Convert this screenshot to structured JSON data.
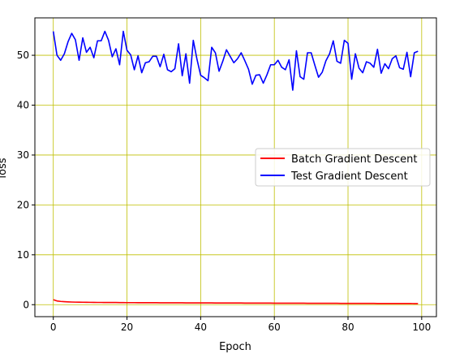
{
  "chart_data": {
    "type": "line",
    "title": "",
    "xlabel": "Epoch",
    "ylabel": "loss",
    "xlim": [
      -5,
      104
    ],
    "ylim": [
      -2.4,
      57.5
    ],
    "xticks": [
      0,
      20,
      40,
      60,
      80,
      100
    ],
    "yticks": [
      0,
      10,
      20,
      30,
      40,
      50
    ],
    "grid": true,
    "grid_color": "#bfbf00",
    "legend_position": "center-right",
    "series": [
      {
        "name": "Batch Gradient Descent",
        "color": "#ff0000",
        "x": [
          0,
          1,
          2,
          3,
          4,
          5,
          6,
          7,
          8,
          9,
          10,
          11,
          12,
          13,
          14,
          15,
          16,
          17,
          18,
          19,
          20,
          21,
          22,
          23,
          24,
          25,
          26,
          27,
          28,
          29,
          30,
          31,
          32,
          33,
          34,
          35,
          36,
          37,
          38,
          39,
          40,
          41,
          42,
          43,
          44,
          45,
          46,
          47,
          48,
          49,
          50,
          51,
          52,
          53,
          54,
          55,
          56,
          57,
          58,
          59,
          60,
          61,
          62,
          63,
          64,
          65,
          66,
          67,
          68,
          69,
          70,
          71,
          72,
          73,
          74,
          75,
          76,
          77,
          78,
          79,
          80,
          81,
          82,
          83,
          84,
          85,
          86,
          87,
          88,
          89,
          90,
          91,
          92,
          93,
          94,
          95,
          96,
          97,
          98,
          99
        ],
        "values": [
          1.0,
          0.75,
          0.65,
          0.6,
          0.56,
          0.53,
          0.51,
          0.5,
          0.49,
          0.48,
          0.47,
          0.46,
          0.45,
          0.45,
          0.44,
          0.44,
          0.43,
          0.43,
          0.42,
          0.42,
          0.41,
          0.41,
          0.41,
          0.4,
          0.4,
          0.4,
          0.39,
          0.39,
          0.39,
          0.38,
          0.38,
          0.38,
          0.38,
          0.37,
          0.37,
          0.37,
          0.36,
          0.36,
          0.36,
          0.36,
          0.35,
          0.35,
          0.35,
          0.35,
          0.34,
          0.34,
          0.34,
          0.34,
          0.33,
          0.33,
          0.33,
          0.33,
          0.32,
          0.32,
          0.32,
          0.32,
          0.31,
          0.31,
          0.31,
          0.31,
          0.3,
          0.3,
          0.3,
          0.3,
          0.29,
          0.29,
          0.29,
          0.29,
          0.29,
          0.28,
          0.28,
          0.28,
          0.28,
          0.27,
          0.27,
          0.27,
          0.27,
          0.27,
          0.26,
          0.26,
          0.26,
          0.26,
          0.26,
          0.25,
          0.25,
          0.25,
          0.25,
          0.25,
          0.24,
          0.24,
          0.24,
          0.24,
          0.24,
          0.23,
          0.23,
          0.23,
          0.23,
          0.23,
          0.22,
          0.22
        ]
      },
      {
        "name": "Test Gradient Descent",
        "color": "#0000ff",
        "x": [
          0,
          1,
          2,
          3,
          4,
          5,
          6,
          7,
          8,
          9,
          10,
          11,
          12,
          13,
          14,
          15,
          16,
          17,
          18,
          19,
          20,
          21,
          22,
          23,
          24,
          25,
          26,
          27,
          28,
          29,
          30,
          31,
          32,
          33,
          34,
          35,
          36,
          37,
          38,
          39,
          40,
          41,
          42,
          43,
          44,
          45,
          46,
          47,
          48,
          49,
          50,
          51,
          52,
          53,
          54,
          55,
          56,
          57,
          58,
          59,
          60,
          61,
          62,
          63,
          64,
          65,
          66,
          67,
          68,
          69,
          70,
          71,
          72,
          73,
          74,
          75,
          76,
          77,
          78,
          79,
          80,
          81,
          82,
          83,
          84,
          85,
          86,
          87,
          88,
          89,
          90,
          91,
          92,
          93,
          94,
          95,
          96,
          97,
          98,
          99
        ],
        "values": [
          54.8,
          50.0,
          49.0,
          50.3,
          52.7,
          54.4,
          53.1,
          49.0,
          53.5,
          50.6,
          51.6,
          49.5,
          52.9,
          52.9,
          54.8,
          53.0,
          49.7,
          51.3,
          48.1,
          54.8,
          51.0,
          50.1,
          47.1,
          49.9,
          46.5,
          48.5,
          48.7,
          49.8,
          49.8,
          47.7,
          50.2,
          47.1,
          46.7,
          47.3,
          52.3,
          45.9,
          50.3,
          44.4,
          53.0,
          49.2,
          46.0,
          45.5,
          44.9,
          51.6,
          50.5,
          46.8,
          48.8,
          51.1,
          49.8,
          48.5,
          49.3,
          50.5,
          48.9,
          47.2,
          44.2,
          46.0,
          46.1,
          44.4,
          46.1,
          48.1,
          48.1,
          49.0,
          47.6,
          47.1,
          49.1,
          43.0,
          50.9,
          45.7,
          45.2,
          50.5,
          50.5,
          48.0,
          45.6,
          46.6,
          48.9,
          50.3,
          52.9,
          48.8,
          48.4,
          53.0,
          52.4,
          45.2,
          50.3,
          47.4,
          46.5,
          48.7,
          48.4,
          47.6,
          51.2,
          46.4,
          48.3,
          47.3,
          49.3,
          49.9,
          47.5,
          47.2,
          50.6,
          45.7,
          50.5,
          50.8
        ]
      }
    ]
  }
}
